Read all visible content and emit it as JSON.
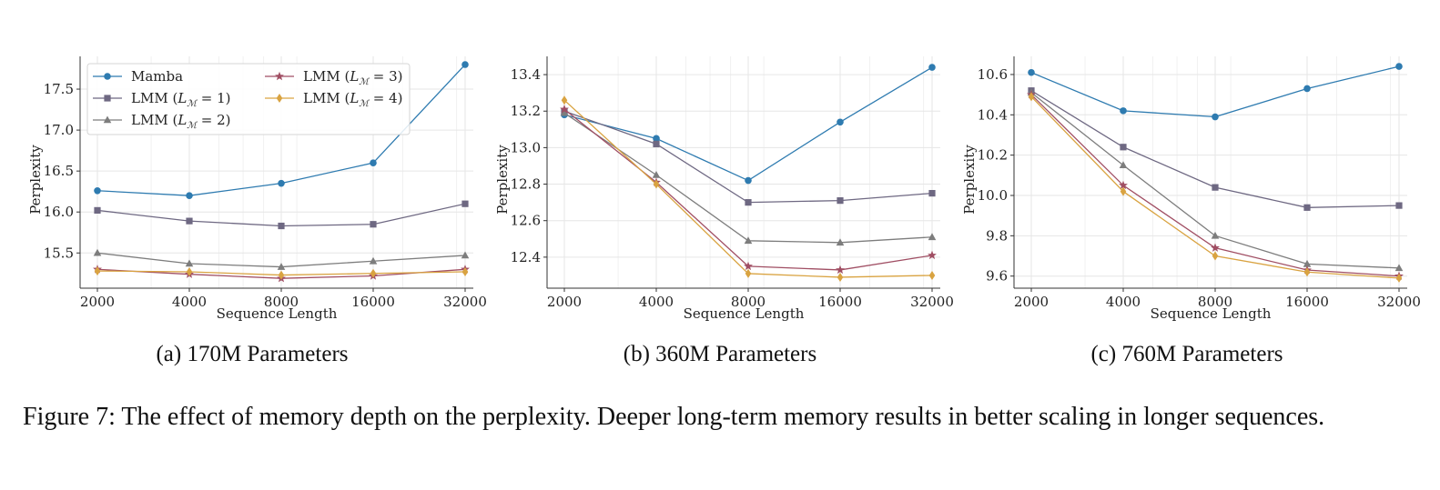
{
  "figure": {
    "caption": "Figure 7: The effect of memory depth on the perplexity. Deeper long-term memory results in better scaling in longer sequences."
  },
  "colors": {
    "Mamba": "#2e7bb0",
    "LMM1": "#6e6882",
    "LMM2": "#7d7d7d",
    "LMM3": "#a04e63",
    "LMM4": "#d9a341"
  },
  "chart_data": [
    {
      "type": "line",
      "caption": "(a) 170M Parameters",
      "xlabel": "Sequence Length",
      "ylabel": "Perplexity",
      "x": [
        2000,
        4000,
        8000,
        16000,
        32000
      ],
      "x_scale": "log2",
      "yticks": [
        15.5,
        16.0,
        16.5,
        17.0,
        17.5
      ],
      "ylim": [
        15.07,
        17.9
      ],
      "grid": true,
      "legend": {
        "placement": "top-left",
        "columns": 2
      },
      "series": [
        {
          "key": "Mamba",
          "name": "Mamba",
          "marker": "circle",
          "values": [
            16.26,
            16.2,
            16.35,
            16.6,
            17.8
          ]
        },
        {
          "key": "LMM1",
          "name": "LMM (L_M = 1)",
          "marker": "square",
          "values": [
            16.02,
            15.89,
            15.83,
            15.85,
            16.1
          ]
        },
        {
          "key": "LMM2",
          "name": "LMM (L_M = 2)",
          "marker": "triangle",
          "values": [
            15.5,
            15.37,
            15.33,
            15.4,
            15.47
          ]
        },
        {
          "key": "LMM3",
          "name": "LMM (L_M = 3)",
          "marker": "star",
          "values": [
            15.3,
            15.24,
            15.19,
            15.22,
            15.3
          ]
        },
        {
          "key": "LMM4",
          "name": "LMM (L_M = 4)",
          "marker": "diamond",
          "values": [
            15.28,
            15.27,
            15.23,
            15.25,
            15.27
          ]
        }
      ]
    },
    {
      "type": "line",
      "caption": "(b) 360M Parameters",
      "xlabel": "Sequence Length",
      "ylabel": "Perplexity",
      "x": [
        2000,
        4000,
        8000,
        16000,
        32000
      ],
      "x_scale": "log2",
      "yticks": [
        12.4,
        12.6,
        12.8,
        13.0,
        13.2,
        13.4
      ],
      "ylim": [
        12.23,
        13.5
      ],
      "grid": true,
      "series": [
        {
          "key": "Mamba",
          "name": "Mamba",
          "marker": "circle",
          "values": [
            13.18,
            13.05,
            12.82,
            13.14,
            13.44
          ]
        },
        {
          "key": "LMM1",
          "name": "LMM (L_M = 1)",
          "marker": "square",
          "values": [
            13.2,
            13.02,
            12.7,
            12.71,
            12.75
          ]
        },
        {
          "key": "LMM2",
          "name": "LMM (L_M = 2)",
          "marker": "triangle",
          "values": [
            13.19,
            12.85,
            12.49,
            12.48,
            12.51
          ]
        },
        {
          "key": "LMM3",
          "name": "LMM (L_M = 3)",
          "marker": "star",
          "values": [
            13.21,
            12.81,
            12.35,
            12.33,
            12.41
          ]
        },
        {
          "key": "LMM4",
          "name": "LMM (L_M = 4)",
          "marker": "diamond",
          "values": [
            13.26,
            12.8,
            12.31,
            12.29,
            12.3
          ]
        }
      ]
    },
    {
      "type": "line",
      "caption": "(c) 760M Parameters",
      "xlabel": "Sequence Length",
      "ylabel": "Perplexity",
      "x": [
        2000,
        4000,
        8000,
        16000,
        32000
      ],
      "x_scale": "log2",
      "yticks": [
        9.6,
        9.8,
        10.0,
        10.2,
        10.4,
        10.6
      ],
      "ylim": [
        9.54,
        10.69
      ],
      "grid": true,
      "series": [
        {
          "key": "Mamba",
          "name": "Mamba",
          "marker": "circle",
          "values": [
            10.61,
            10.42,
            10.39,
            10.53,
            10.64
          ]
        },
        {
          "key": "LMM1",
          "name": "LMM (L_M = 1)",
          "marker": "square",
          "values": [
            10.52,
            10.24,
            10.04,
            9.94,
            9.95
          ]
        },
        {
          "key": "LMM2",
          "name": "LMM (L_M = 2)",
          "marker": "triangle",
          "values": [
            10.51,
            10.15,
            9.8,
            9.66,
            9.64
          ]
        },
        {
          "key": "LMM3",
          "name": "LMM (L_M = 3)",
          "marker": "star",
          "values": [
            10.5,
            10.05,
            9.74,
            9.63,
            9.6
          ]
        },
        {
          "key": "LMM4",
          "name": "LMM (L_M = 4)",
          "marker": "diamond",
          "values": [
            10.49,
            10.02,
            9.7,
            9.62,
            9.59
          ]
        }
      ]
    }
  ]
}
